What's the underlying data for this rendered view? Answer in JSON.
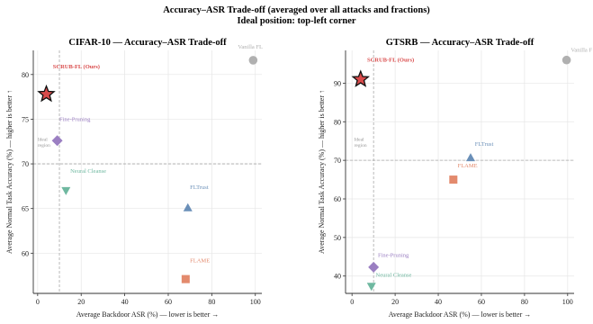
{
  "figure": {
    "title_line1": "Accuracy–ASR Trade-off (averaged over all attacks and fractions)",
    "title_line2": "Ideal position: top-left corner"
  },
  "chart_data": [
    {
      "type": "scatter",
      "title": "CIFAR-10 — Accuracy–ASR Trade-off",
      "xlabel": "Average Backdoor ASR (%) — lower is better →",
      "ylabel": "Average Normal Task Accuracy (%) — higher is better ↑",
      "xlim": [
        -2,
        103
      ],
      "ylim": [
        55.5,
        82.7
      ],
      "xticks": [
        0,
        20,
        40,
        60,
        80,
        100
      ],
      "yticks": [
        60,
        65,
        70,
        75,
        80
      ],
      "grid": true,
      "ref_x": 10,
      "ref_y": 70,
      "ideal_text_line1": "Ideal",
      "ideal_text_line2": "region",
      "ideal_pos": [
        0,
        72.6
      ],
      "points": [
        {
          "name": "Vanilla FL",
          "x": 99,
          "y": 81.6,
          "marker": "circle",
          "color": "#b0b0b0",
          "label_pos": [
            92,
            82.9
          ]
        },
        {
          "name": "SCRUB-FL (Ours)",
          "x": 4,
          "y": 77.8,
          "marker": "star",
          "color": "#d94b4b",
          "label_pos": [
            7,
            80.7
          ],
          "bold": true
        },
        {
          "name": "Fine-Pruning",
          "x": 9,
          "y": 72.6,
          "marker": "diamond",
          "color": "#9b7fc2",
          "label_pos": [
            10,
            74.8
          ]
        },
        {
          "name": "Neural Cleanse",
          "x": 13,
          "y": 67,
          "marker": "triangle-down",
          "color": "#6fb8a0",
          "label_pos": [
            15,
            69
          ]
        },
        {
          "name": "FLTrust",
          "x": 69,
          "y": 65.1,
          "marker": "triangle-up",
          "color": "#6a8fb8",
          "label_pos": [
            70,
            67.2
          ]
        },
        {
          "name": "FLAME",
          "x": 68,
          "y": 57.1,
          "marker": "square",
          "color": "#e38a6d",
          "label_pos": [
            70,
            59
          ]
        }
      ]
    },
    {
      "type": "scatter",
      "title": "GTSRB — Accuracy–ASR Trade-off",
      "xlabel": "Average Backdoor ASR (%) — lower is better →",
      "ylabel": "Average Normal Task Accuracy (%) — higher is better ↑",
      "xlim": [
        -3,
        103
      ],
      "ylim": [
        35.5,
        98.5
      ],
      "xticks": [
        0,
        20,
        40,
        60,
        80,
        100
      ],
      "yticks": [
        40,
        50,
        60,
        70,
        80,
        90
      ],
      "grid": true,
      "ref_x": 10,
      "ref_y": 70,
      "ideal_text_line1": "Ideal",
      "ideal_text_line2": "region",
      "ideal_pos": [
        1,
        75
      ],
      "points": [
        {
          "name": "Vanilla F",
          "x": 99.5,
          "y": 96,
          "marker": "circle",
          "color": "#b0b0b0",
          "label_pos": [
            101.5,
            98.2
          ]
        },
        {
          "name": "SCRUB-FL (Ours)",
          "x": 4,
          "y": 91,
          "marker": "star",
          "color": "#d94b4b",
          "label_pos": [
            7,
            95.6
          ],
          "bold": true
        },
        {
          "name": "FLTrust",
          "x": 55,
          "y": 70.7,
          "marker": "triangle-up",
          "color": "#6a8fb8",
          "label_pos": [
            57,
            73.8
          ]
        },
        {
          "name": "FLAME",
          "x": 47,
          "y": 65,
          "marker": "square",
          "color": "#e38a6d",
          "label_pos": [
            49,
            68.2
          ]
        },
        {
          "name": "Fine-Pruning",
          "x": 10,
          "y": 42.3,
          "marker": "diamond",
          "color": "#9b7fc2",
          "label_pos": [
            12,
            45
          ]
        },
        {
          "name": "Neural Cleanse",
          "x": 9,
          "y": 37.3,
          "marker": "triangle-down",
          "color": "#6fb8a0",
          "label_pos": [
            11,
            39.8
          ]
        }
      ]
    }
  ]
}
